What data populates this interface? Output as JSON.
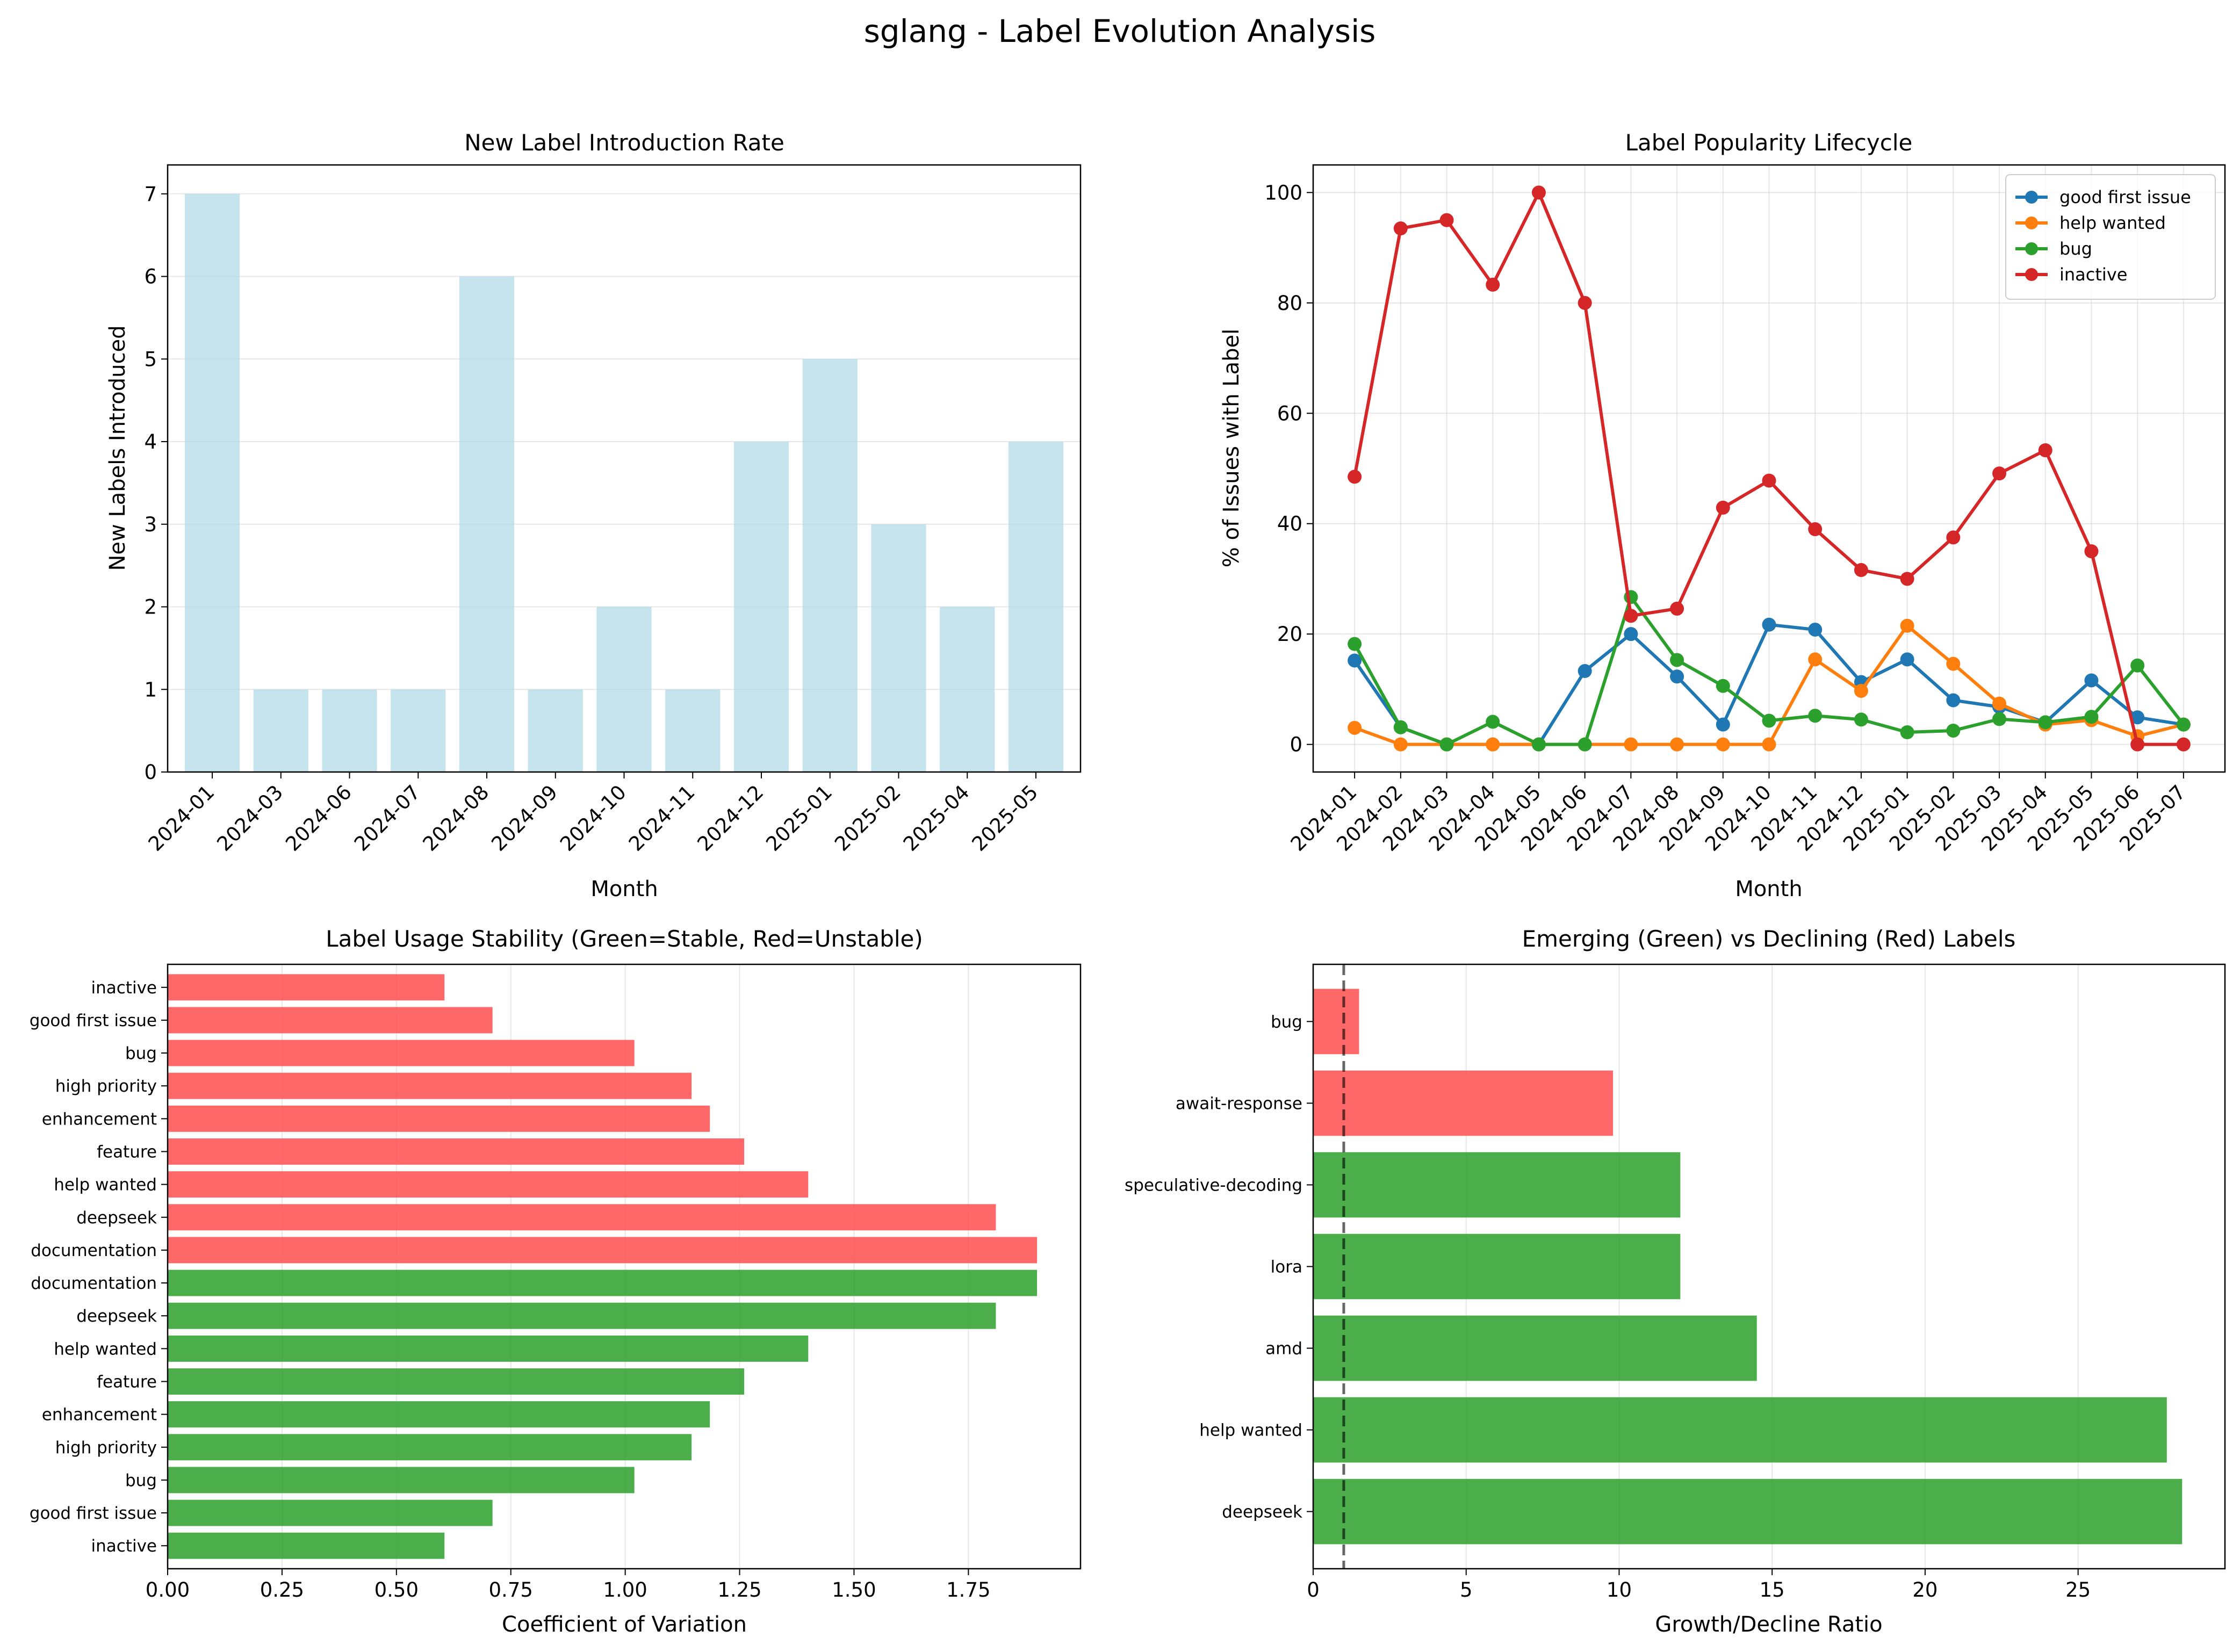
{
  "suptitle": "sglang - Label Evolution Analysis",
  "colors": {
    "bar_blue": "#add8e6",
    "stable": "#2ca02c",
    "unstable": "#ff4d4d",
    "series": [
      "#1f77b4",
      "#ff7f0e",
      "#2ca02c",
      "#d62728"
    ]
  },
  "chart_data": [
    {
      "type": "bar",
      "title": "New Label Introduction Rate",
      "xlabel": "Month",
      "ylabel": "New Labels Introduced",
      "categories": [
        "2024-01",
        "2024-03",
        "2024-06",
        "2024-07",
        "2024-08",
        "2024-09",
        "2024-10",
        "2024-11",
        "2024-12",
        "2025-01",
        "2025-02",
        "2025-04",
        "2025-05"
      ],
      "values": [
        7,
        1,
        1,
        1,
        6,
        1,
        2,
        1,
        4,
        5,
        3,
        2,
        4
      ],
      "ylim": [
        0,
        7.35
      ],
      "yticks": [
        0,
        1,
        2,
        3,
        4,
        5,
        6,
        7
      ],
      "grid": "y"
    },
    {
      "type": "line",
      "title": "Label Popularity Lifecycle",
      "xlabel": "Month",
      "ylabel": "% of Issues with Label",
      "x": [
        "2024-01",
        "2024-02",
        "2024-03",
        "2024-04",
        "2024-05",
        "2024-06",
        "2024-07",
        "2024-08",
        "2024-09",
        "2024-10",
        "2024-11",
        "2024-12",
        "2025-01",
        "2025-02",
        "2025-03",
        "2025-04",
        "2025-05",
        "2025-06",
        "2025-07"
      ],
      "ylim": [
        -5,
        105
      ],
      "yticks": [
        0,
        20,
        40,
        60,
        80,
        100
      ],
      "grid": "both",
      "legend": "top-right",
      "series": [
        {
          "name": "good first issue",
          "values": [
            15.2,
            3.1,
            0,
            0,
            0,
            13.3,
            20.0,
            12.3,
            3.6,
            21.7,
            20.8,
            11.3,
            15.4,
            8.0,
            6.8,
            4.0,
            11.6,
            4.9,
            3.6
          ]
        },
        {
          "name": "help wanted",
          "values": [
            3.0,
            0,
            0,
            0,
            0,
            0,
            0,
            0,
            0,
            0,
            15.4,
            9.7,
            21.5,
            14.6,
            7.4,
            3.6,
            4.4,
            1.5,
            3.6
          ]
        },
        {
          "name": "bug",
          "values": [
            18.2,
            3.1,
            0,
            4.1,
            0,
            0,
            26.7,
            15.3,
            10.6,
            4.3,
            5.2,
            4.5,
            2.2,
            2.5,
            4.6,
            4.0,
            5.0,
            14.3,
            3.6
          ]
        },
        {
          "name": "inactive",
          "values": [
            48.5,
            93.5,
            95.0,
            83.3,
            100,
            80.0,
            23.3,
            24.6,
            42.9,
            47.8,
            39.0,
            31.6,
            30.0,
            37.5,
            49.1,
            53.3,
            35.0,
            0,
            0
          ]
        }
      ]
    },
    {
      "type": "bar",
      "orientation": "horizontal",
      "title": "Label Usage Stability (Green=Stable, Red=Unstable)",
      "xlabel": "Coefficient of Variation",
      "xlim": [
        0,
        1.995
      ],
      "xticks": [
        "0.00",
        "0.25",
        "0.50",
        "0.75",
        "1.00",
        "1.25",
        "1.50",
        "1.75"
      ],
      "grid": "x",
      "bars": [
        {
          "label": "inactive",
          "value": 0.605,
          "status": "stable"
        },
        {
          "label": "good first issue",
          "value": 0.71,
          "status": "stable"
        },
        {
          "label": "bug",
          "value": 1.02,
          "status": "stable"
        },
        {
          "label": "high priority",
          "value": 1.145,
          "status": "stable"
        },
        {
          "label": "enhancement",
          "value": 1.185,
          "status": "stable"
        },
        {
          "label": "feature",
          "value": 1.26,
          "status": "stable"
        },
        {
          "label": "help wanted",
          "value": 1.4,
          "status": "stable"
        },
        {
          "label": "deepseek",
          "value": 1.81,
          "status": "stable"
        },
        {
          "label": "documentation",
          "value": 1.9,
          "status": "stable"
        },
        {
          "label": "documentation",
          "value": 1.9,
          "status": "unstable"
        },
        {
          "label": "deepseek",
          "value": 1.81,
          "status": "unstable"
        },
        {
          "label": "help wanted",
          "value": 1.4,
          "status": "unstable"
        },
        {
          "label": "feature",
          "value": 1.26,
          "status": "unstable"
        },
        {
          "label": "enhancement",
          "value": 1.185,
          "status": "unstable"
        },
        {
          "label": "high priority",
          "value": 1.145,
          "status": "unstable"
        },
        {
          "label": "bug",
          "value": 1.02,
          "status": "unstable"
        },
        {
          "label": "good first issue",
          "value": 0.71,
          "status": "unstable"
        },
        {
          "label": "inactive",
          "value": 0.605,
          "status": "unstable"
        }
      ]
    },
    {
      "type": "bar",
      "orientation": "horizontal",
      "title": "Emerging (Green) vs Declining (Red) Labels",
      "xlabel": "Growth/Decline Ratio",
      "xlim": [
        0,
        29.8
      ],
      "xticks": [
        0,
        5,
        10,
        15,
        20,
        25
      ],
      "reference_line": 1,
      "grid": "x",
      "bars": [
        {
          "label": "deepseek",
          "value": 28.4,
          "status": "emerging"
        },
        {
          "label": "help wanted",
          "value": 27.9,
          "status": "emerging"
        },
        {
          "label": "amd",
          "value": 14.5,
          "status": "emerging"
        },
        {
          "label": "lora",
          "value": 12.0,
          "status": "emerging"
        },
        {
          "label": "speculative-decoding",
          "value": 12.0,
          "status": "emerging"
        },
        {
          "label": "await-response",
          "value": 9.8,
          "status": "declining"
        },
        {
          "label": "bug",
          "value": 1.5,
          "status": "declining"
        }
      ]
    }
  ]
}
